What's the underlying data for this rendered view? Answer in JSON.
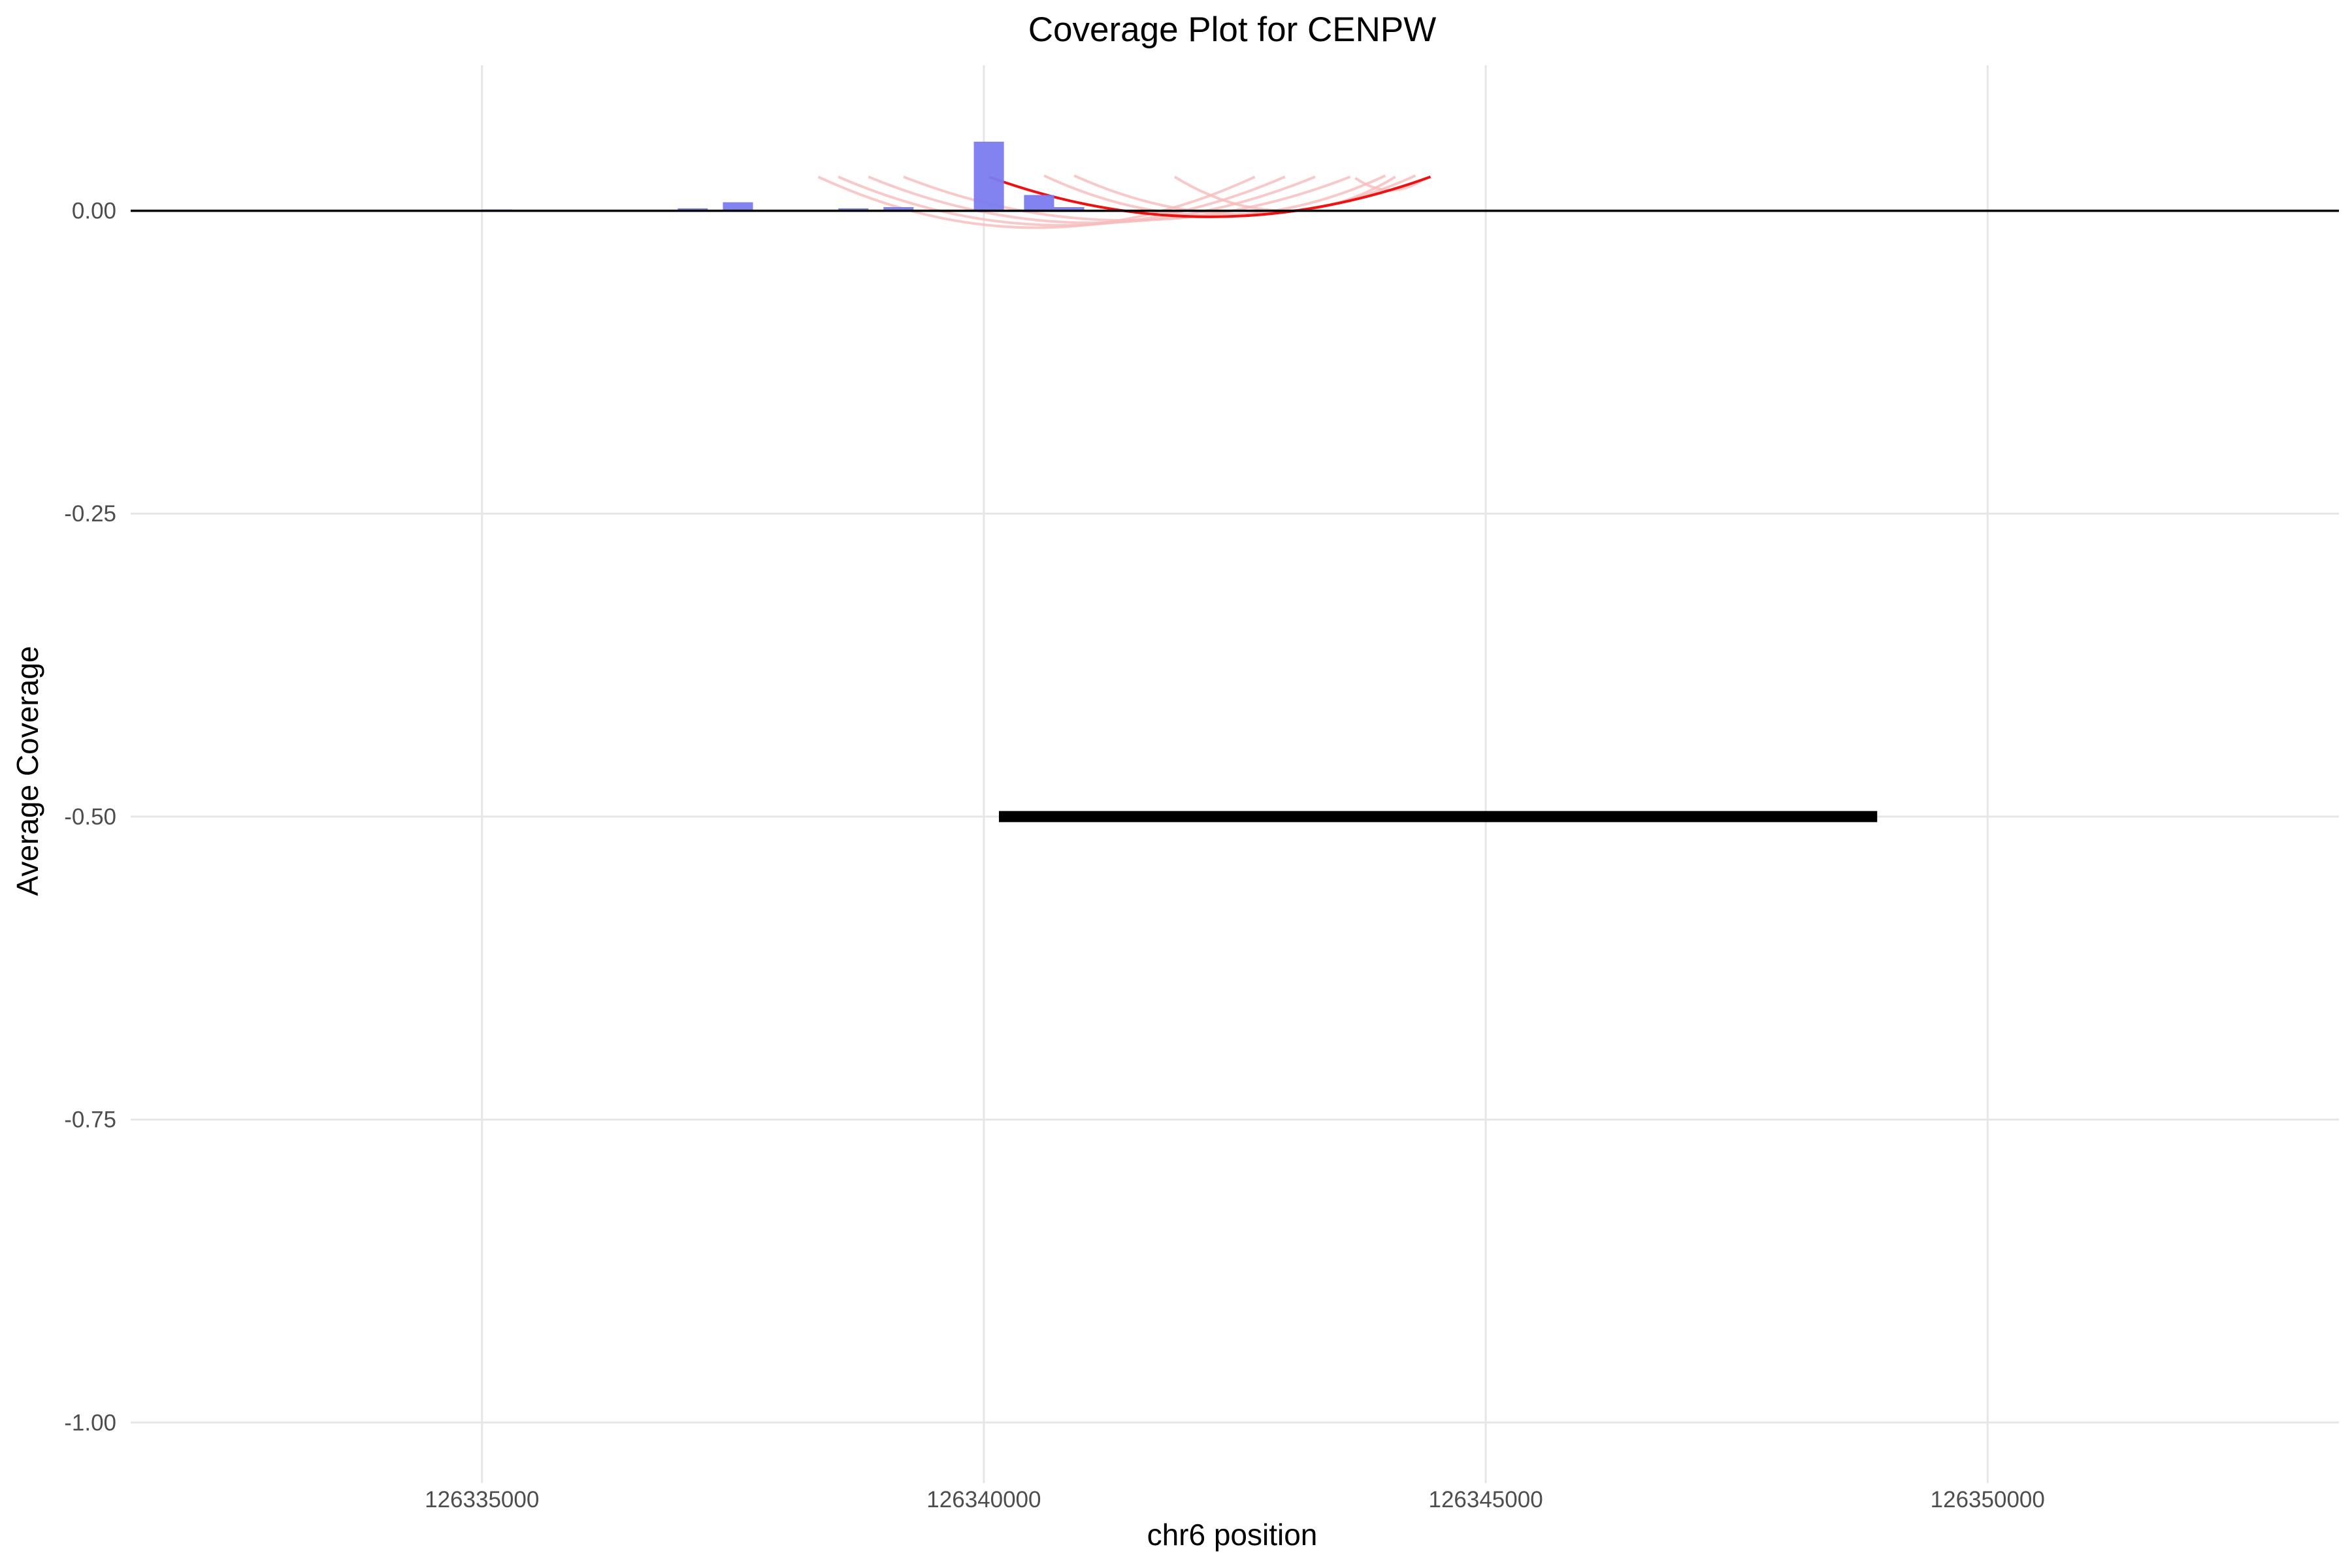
{
  "chart_data": {
    "type": "bar",
    "title": "Coverage Plot for CENPW",
    "xlabel": "chr6 position",
    "ylabel": "Average Coverage",
    "xlim": [
      126331500,
      126353500
    ],
    "ylim": [
      -1.05,
      0.12
    ],
    "x_ticks": [
      126335000,
      126340000,
      126345000,
      126350000
    ],
    "x_tick_labels": [
      "126335000",
      "126340000",
      "126345000",
      "126350000"
    ],
    "y_ticks": [
      0.0,
      -0.25,
      -0.5,
      -0.75,
      -1.0
    ],
    "y_tick_labels": [
      "0.00",
      "-0.25",
      "-0.50",
      "-0.75",
      "-1.00"
    ],
    "grid": true,
    "colors": {
      "bars": "#7b7bf0",
      "gene": "#000000",
      "baseline": "#000000",
      "gridline": "#e6e6e6",
      "arc_primary": "#ee1111",
      "arc_faint": "#f7bcbc"
    },
    "series": [
      {
        "kind": "bar",
        "bin_width": 300,
        "x": [
          126335150,
          126337100,
          126337550,
          126338700,
          126339150,
          126340050,
          126340550,
          126340850
        ],
        "values": [
          0.001,
          0.002,
          0.007,
          0.002,
          0.003,
          0.057,
          0.013,
          0.003
        ]
      },
      {
        "kind": "gene-segment",
        "x_start": 126340150,
        "x_end": 126348900,
        "y": -0.5
      },
      {
        "kind": "arcs",
        "arcs": [
          {
            "x_start": 126340050,
            "x_end": 126344450,
            "y_end": 0.028,
            "y_min": -0.005,
            "primary": true
          },
          {
            "x_start": 126338350,
            "x_end": 126342700,
            "y_end": 0.028,
            "y_min": -0.014,
            "primary": false
          },
          {
            "x_start": 126338550,
            "x_end": 126343000,
            "y_end": 0.028,
            "y_min": -0.012,
            "primary": false
          },
          {
            "x_start": 126338850,
            "x_end": 126343300,
            "y_end": 0.028,
            "y_min": -0.01,
            "primary": false
          },
          {
            "x_start": 126339200,
            "x_end": 126343650,
            "y_end": 0.028,
            "y_min": -0.008,
            "primary": false
          },
          {
            "x_start": 126340600,
            "x_end": 126344000,
            "y_end": 0.029,
            "y_min": -0.004,
            "primary": false
          },
          {
            "x_start": 126340900,
            "x_end": 126344300,
            "y_end": 0.029,
            "y_min": -0.003,
            "primary": false
          },
          {
            "x_start": 126341900,
            "x_end": 126344100,
            "y_end": 0.028,
            "y_min": 0.0,
            "primary": false
          },
          {
            "x_start": 126343700,
            "x_end": 126344400,
            "y_end": 0.027,
            "y_min": 0.017,
            "primary": false
          }
        ]
      }
    ]
  }
}
